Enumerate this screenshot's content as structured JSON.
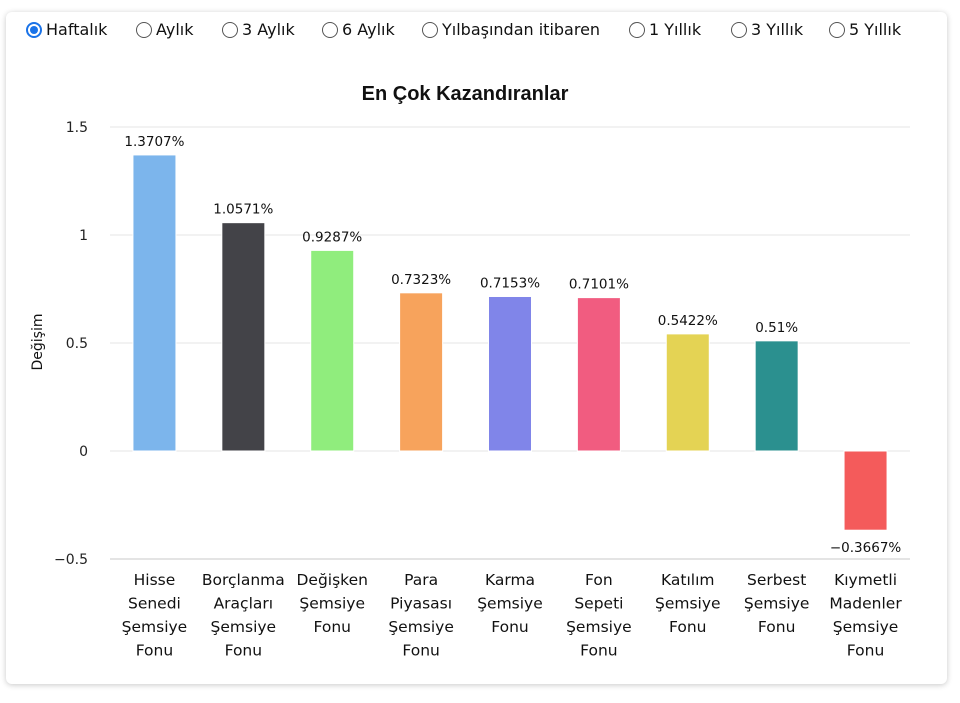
{
  "periods": {
    "selected": "Haftalık",
    "options": [
      "Haftalık",
      "Aylık",
      "3 Aylık",
      "6 Aylık",
      "Yılbaşından itibaren",
      "1 Yıllık",
      "3 Yıllık",
      "5 Yıllık"
    ]
  },
  "chart_data": {
    "type": "bar",
    "title": "En Çok Kazandıranlar",
    "xlabel": "",
    "ylabel": "Değişim",
    "ylim": [
      -0.5,
      1.5
    ],
    "yticks": [
      -0.5,
      0,
      0.5,
      1,
      1.5
    ],
    "ytick_labels": [
      "−0.5",
      "0",
      "0.5",
      "1",
      "1.5"
    ],
    "grid": true,
    "categories": [
      "Hisse Senedi Şemsiye Fonu",
      "Borçlanma Araçları Şemsiye Fonu",
      "Değişken Şemsiye Fonu",
      "Para Piyasası Şemsiye Fonu",
      "Karma Şemsiye Fonu",
      "Fon Sepeti Şemsiye Fonu",
      "Katılım Şemsiye Fonu",
      "Serbest Şemsiye Fonu",
      "Kıymetli Madenler Şemsiye Fonu"
    ],
    "category_lines": [
      [
        "Hisse",
        "Senedi",
        "Şemsiye",
        "Fonu"
      ],
      [
        "Borçlanma",
        "Araçları",
        "Şemsiye",
        "Fonu"
      ],
      [
        "Değişken",
        "Şemsiye",
        "Fonu"
      ],
      [
        "Para",
        "Piyasası",
        "Şemsiye",
        "Fonu"
      ],
      [
        "Karma",
        "Şemsiye",
        "Fonu"
      ],
      [
        "Fon",
        "Sepeti",
        "Şemsiye",
        "Fonu"
      ],
      [
        "Katılım",
        "Şemsiye",
        "Fonu"
      ],
      [
        "Serbest",
        "Şemsiye",
        "Fonu"
      ],
      [
        "Kıymetli",
        "Madenler",
        "Şemsiye",
        "Fonu"
      ]
    ],
    "values": [
      1.3707,
      1.0571,
      0.9287,
      0.7323,
      0.7153,
      0.7101,
      0.5422,
      0.51,
      -0.3667
    ],
    "data_labels": [
      "1.3707%",
      "1.0571%",
      "0.9287%",
      "0.7323%",
      "0.7153%",
      "0.7101%",
      "0.5422%",
      "0.51%",
      "−0.3667%"
    ],
    "colors": [
      "#7cb5ec",
      "#434348",
      "#90ed7d",
      "#f7a35c",
      "#8085e9",
      "#f15c80",
      "#e4d354",
      "#2b908f",
      "#f45b5b"
    ]
  }
}
